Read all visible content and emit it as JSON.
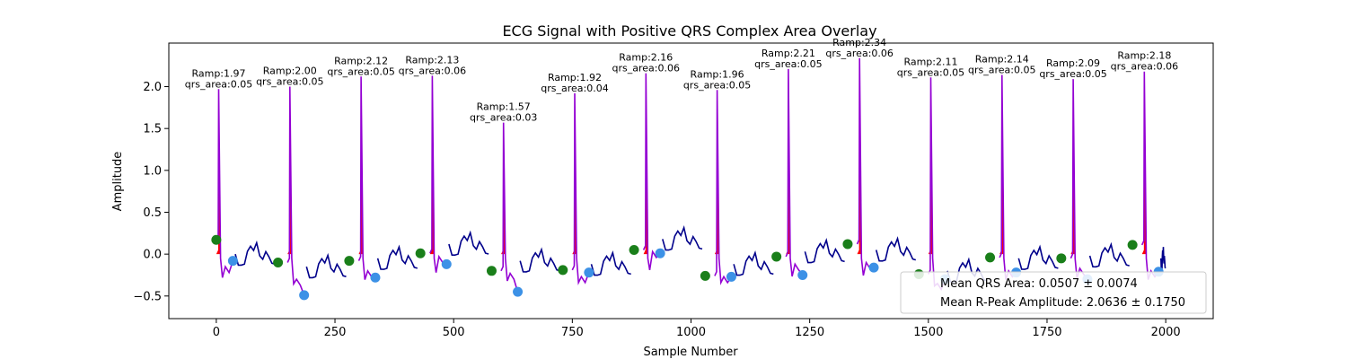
{
  "chart_data": {
    "type": "line",
    "title": "ECG Signal with Positive QRS Complex Area Overlay",
    "xlabel": "Sample Number",
    "ylabel": "Amplitude",
    "xlim": [
      -100,
      2100
    ],
    "ylim": [
      -0.77,
      2.52
    ],
    "xticks": [
      0,
      250,
      500,
      750,
      1000,
      1250,
      1500,
      1750,
      2000
    ],
    "yticks": [
      -0.5,
      0.0,
      0.5,
      1.0,
      1.5,
      2.0
    ],
    "ytick_labels": [
      "−0.5",
      "0.0",
      "0.5",
      "1.0",
      "1.5",
      "2.0"
    ],
    "grid": false,
    "legend_position": "lower-right",
    "legend": [
      "Mean QRS Area: 0.0507 ± 0.0074",
      "Mean R-Peak Amplitude: 2.0636 ± 0.1750"
    ],
    "colors": {
      "signal": "#00008b",
      "qrs_segment": "#9400d3",
      "qrs_fill": "#ff0000",
      "onset_marker": "#1a7f1a",
      "offset_marker": "#3c91e6"
    },
    "r_peaks": [
      {
        "x": 5,
        "amp": 1.97,
        "area": 0.05,
        "label1": "Ramp:1.97",
        "label2": "qrs_area:0.05"
      },
      {
        "x": 155,
        "amp": 2.0,
        "area": 0.05,
        "label1": "Ramp:2.00",
        "label2": "qrs_area:0.05"
      },
      {
        "x": 305,
        "amp": 2.12,
        "area": 0.05,
        "label1": "Ramp:2.12",
        "label2": "qrs_area:0.05"
      },
      {
        "x": 455,
        "amp": 2.13,
        "area": 0.06,
        "label1": "Ramp:2.13",
        "label2": "qrs_area:0.06"
      },
      {
        "x": 605,
        "amp": 1.57,
        "area": 0.03,
        "label1": "Ramp:1.57",
        "label2": "qrs_area:0.03"
      },
      {
        "x": 755,
        "amp": 1.92,
        "area": 0.04,
        "label1": "Ramp:1.92",
        "label2": "qrs_area:0.04"
      },
      {
        "x": 905,
        "amp": 2.16,
        "area": 0.06,
        "label1": "Ramp:2.16",
        "label2": "qrs_area:0.06"
      },
      {
        "x": 1055,
        "amp": 1.96,
        "area": 0.05,
        "label1": "Ramp:1.96",
        "label2": "qrs_area:0.05"
      },
      {
        "x": 1205,
        "amp": 2.21,
        "area": 0.05,
        "label1": "Ramp:2.21",
        "label2": "qrs_area:0.05"
      },
      {
        "x": 1355,
        "amp": 2.34,
        "area": 0.06,
        "label1": "Ramp:2.34",
        "label2": "qrs_area:0.06"
      },
      {
        "x": 1505,
        "amp": 2.11,
        "area": 0.05,
        "label1": "Ramp:2.11",
        "label2": "qrs_area:0.05"
      },
      {
        "x": 1655,
        "amp": 2.14,
        "area": 0.05,
        "label1": "Ramp:2.14",
        "label2": "qrs_area:0.05"
      },
      {
        "x": 1805,
        "amp": 2.09,
        "area": 0.05,
        "label1": "Ramp:2.09",
        "label2": "qrs_area:0.05"
      },
      {
        "x": 1955,
        "amp": 2.18,
        "area": 0.06,
        "label1": "Ramp:2.18",
        "label2": "qrs_area:0.06"
      }
    ],
    "onset_markers": [
      {
        "x": 0,
        "y": 0.17
      },
      {
        "x": 130,
        "y": -0.1
      },
      {
        "x": 280,
        "y": -0.08
      },
      {
        "x": 430,
        "y": 0.01
      },
      {
        "x": 580,
        "y": -0.2
      },
      {
        "x": 730,
        "y": -0.19
      },
      {
        "x": 880,
        "y": 0.05
      },
      {
        "x": 1030,
        "y": -0.26
      },
      {
        "x": 1180,
        "y": -0.03
      },
      {
        "x": 1330,
        "y": 0.12
      },
      {
        "x": 1480,
        "y": -0.24
      },
      {
        "x": 1630,
        "y": -0.04
      },
      {
        "x": 1780,
        "y": -0.05
      },
      {
        "x": 1930,
        "y": 0.11
      }
    ],
    "offset_markers": [
      {
        "x": 35,
        "y": -0.08
      },
      {
        "x": 185,
        "y": -0.49
      },
      {
        "x": 335,
        "y": -0.28
      },
      {
        "x": 485,
        "y": -0.12
      },
      {
        "x": 635,
        "y": -0.45
      },
      {
        "x": 785,
        "y": -0.22
      },
      {
        "x": 935,
        "y": 0.01
      },
      {
        "x": 1085,
        "y": -0.27
      },
      {
        "x": 1235,
        "y": -0.25
      },
      {
        "x": 1385,
        "y": -0.16
      },
      {
        "x": 1535,
        "y": -0.3
      },
      {
        "x": 1685,
        "y": -0.22
      },
      {
        "x": 1835,
        "y": -0.3
      },
      {
        "x": 1985,
        "y": -0.21
      }
    ],
    "baseline_pattern": [
      [
        0,
        0.0
      ],
      [
        10,
        -0.12
      ],
      [
        20,
        -0.15
      ],
      [
        30,
        -0.1
      ],
      [
        40,
        0.02
      ],
      [
        50,
        0.1
      ],
      [
        60,
        0.05
      ],
      [
        70,
        0.12
      ],
      [
        80,
        0.0
      ],
      [
        90,
        -0.08
      ],
      [
        100,
        0.04
      ],
      [
        110,
        -0.03
      ],
      [
        120,
        -0.12
      ],
      [
        130,
        -0.1
      ],
      [
        140,
        -0.05
      ]
    ],
    "baseline_offsets": [
      0.0,
      -0.15,
      -0.05,
      0.12,
      -0.08,
      -0.12,
      0.18,
      -0.12,
      0.03,
      0.05,
      -0.2,
      -0.05,
      -0.02,
      -0.05
    ]
  }
}
